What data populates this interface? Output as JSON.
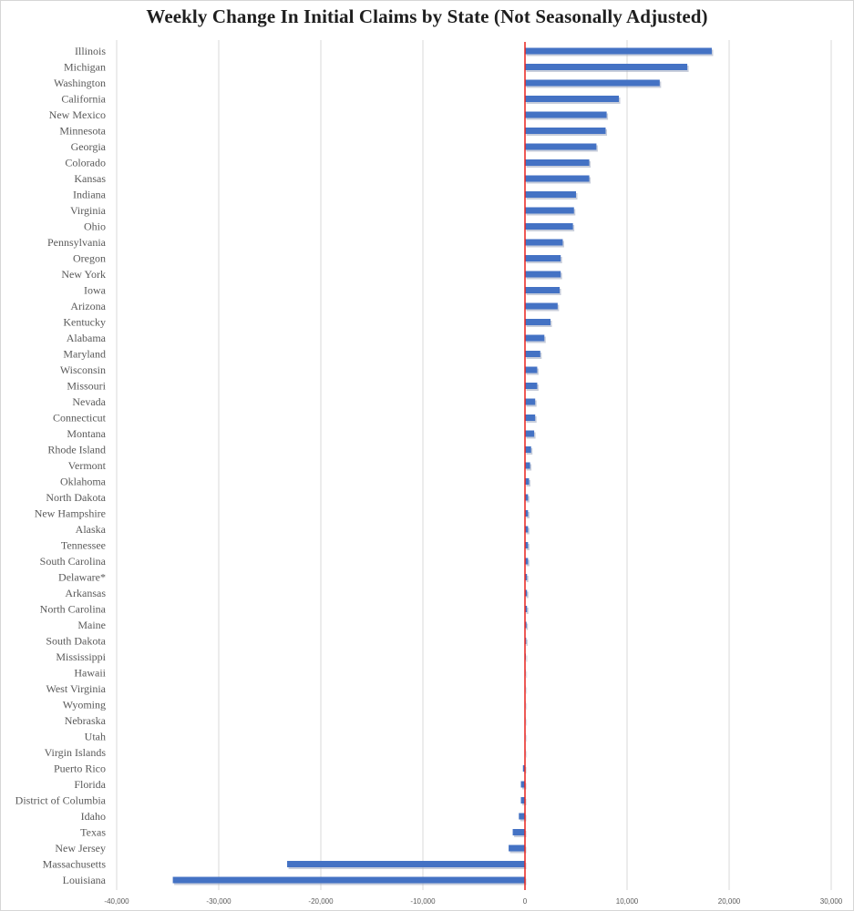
{
  "chart_data": {
    "type": "bar",
    "orientation": "horizontal",
    "title": "Weekly Change In Initial Claims by State (Not Seasonally Adjusted)",
    "xlabel": "",
    "ylabel": "",
    "xlim": [
      -40000,
      30000
    ],
    "x_ticks": [
      -40000,
      -30000,
      -20000,
      -10000,
      0,
      10000,
      20000,
      30000
    ],
    "x_tick_labels": [
      "-40,000",
      "-30,000",
      "-20,000",
      "-10,000",
      "0",
      "10,000",
      "20,000",
      "30,000"
    ],
    "grid": true,
    "legend": "none",
    "bar_color": "#4472c4",
    "zero_line_color": "#e8231e",
    "grid_color": "#d9d9d9",
    "categories": [
      "Illinois",
      "Michigan",
      "Washington",
      "California",
      "New Mexico",
      "Minnesota",
      "Georgia",
      "Colorado",
      "Kansas",
      "Indiana",
      "Virginia",
      "Ohio",
      "Pennsylvania",
      "Oregon",
      "New York",
      "Iowa",
      "Arizona",
      "Kentucky",
      "Alabama",
      "Maryland",
      "Wisconsin",
      "Missouri",
      "Nevada",
      "Connecticut",
      "Montana",
      "Rhode Island",
      "Vermont",
      "Oklahoma",
      "North Dakota",
      "New Hampshire",
      "Alaska",
      "Tennessee",
      "South Carolina",
      "Delaware*",
      "Arkansas",
      "North Carolina",
      "Maine",
      "South Dakota",
      "Mississippi",
      "Hawaii",
      "West Virginia",
      "Wyoming",
      "Nebraska",
      "Utah",
      "Virgin Islands",
      "Puerto Rico",
      "Florida",
      "District of Columbia",
      "Idaho",
      "Texas",
      "New Jersey",
      "Massachusetts",
      "Louisiana"
    ],
    "values": [
      18300,
      15900,
      13200,
      9200,
      8000,
      7900,
      7000,
      6300,
      6300,
      5000,
      4800,
      4700,
      3700,
      3500,
      3500,
      3400,
      3200,
      2500,
      1900,
      1500,
      1200,
      1200,
      1000,
      1000,
      900,
      600,
      500,
      400,
      300,
      300,
      300,
      300,
      300,
      200,
      200,
      200,
      150,
      120,
      80,
      60,
      40,
      30,
      20,
      10,
      5,
      -200,
      -400,
      -400,
      -600,
      -1200,
      -1600,
      -23300,
      -34500
    ]
  }
}
